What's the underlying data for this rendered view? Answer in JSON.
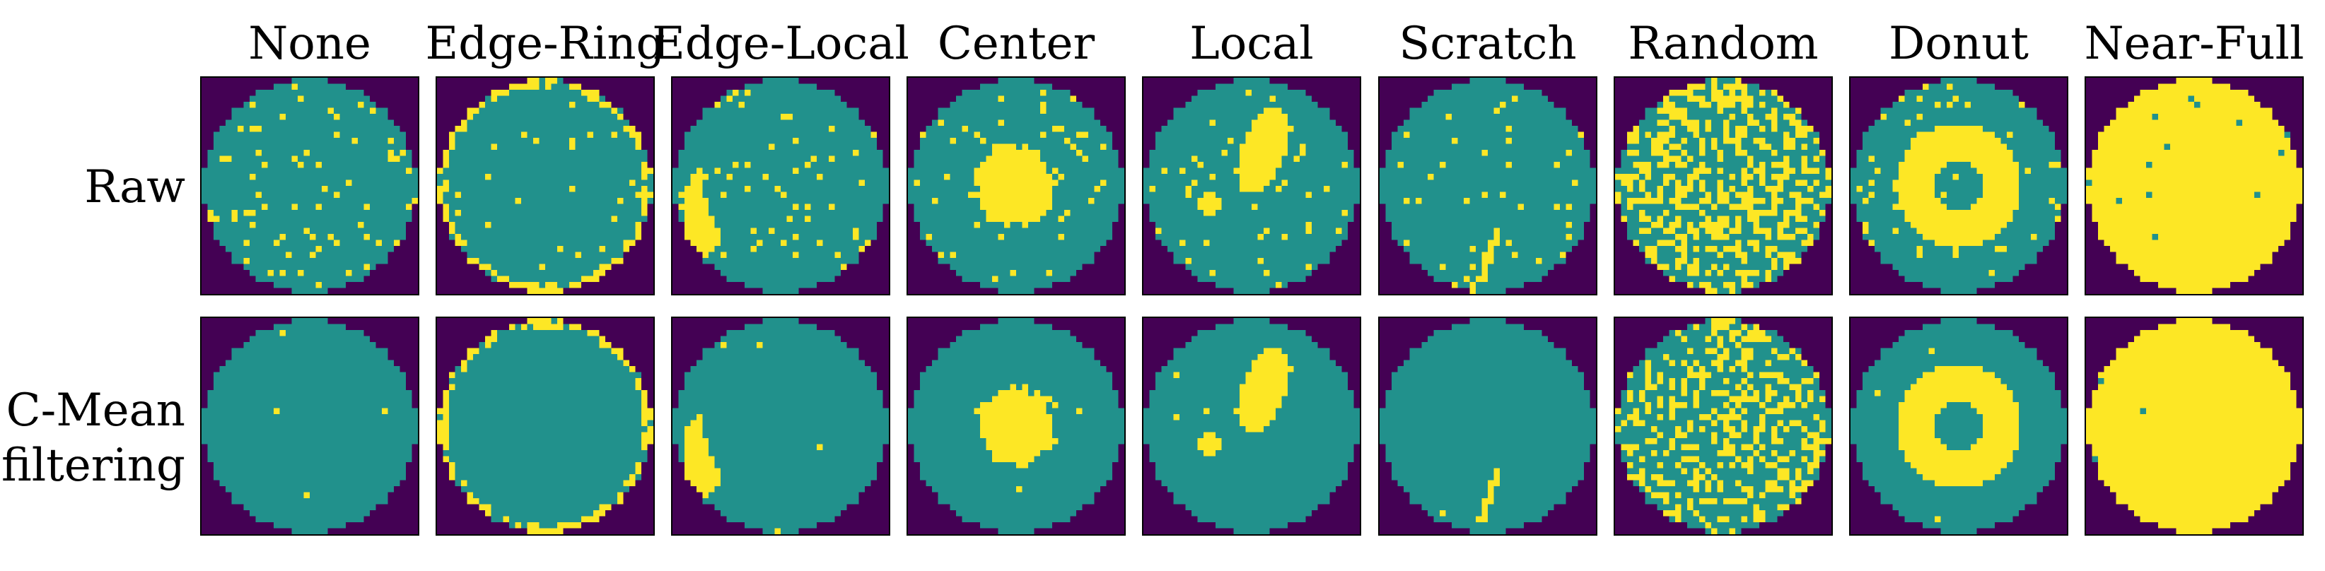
{
  "columns": [
    "None",
    "Edge-Ring",
    "Edge-Local",
    "Center",
    "Local",
    "Scratch",
    "Random",
    "Donut",
    "Near-Full"
  ],
  "rows": [
    {
      "label_line1": "Raw",
      "label_line2": ""
    },
    {
      "label_line1": "C-Mean",
      "label_line2": "filtering"
    }
  ],
  "colors": {
    "background": "#440154",
    "wafer": "#21918c",
    "defect": "#fde725"
  }
}
